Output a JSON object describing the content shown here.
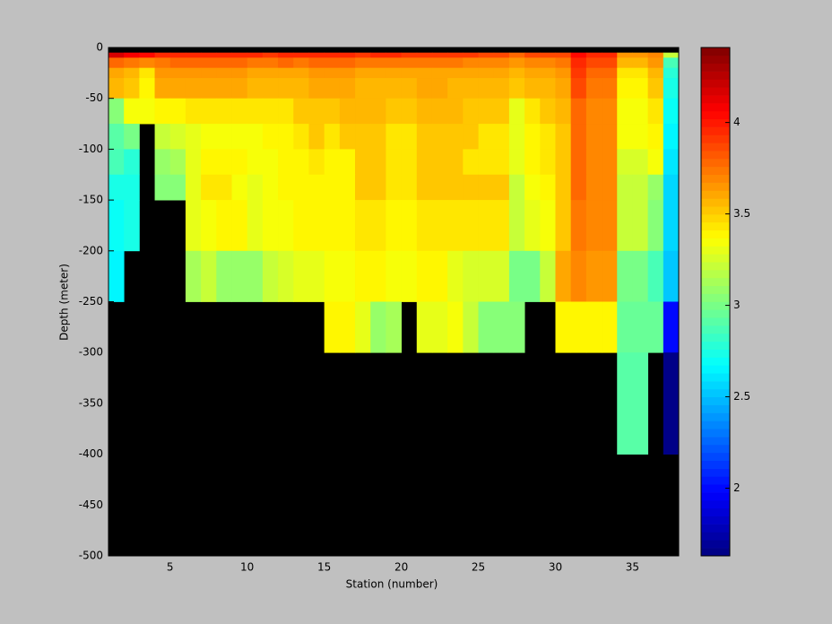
{
  "chart_data": {
    "type": "heatmap",
    "xlabel": "Station (number)",
    "ylabel": "Depth (meter)",
    "colormap": "jet",
    "x": [
      1,
      2,
      3,
      4,
      5,
      6,
      7,
      8,
      9,
      10,
      11,
      12,
      13,
      14,
      15,
      16,
      17,
      18,
      19,
      20,
      21,
      22,
      23,
      24,
      25,
      26,
      27,
      28,
      29,
      30,
      31,
      32,
      33,
      34,
      35,
      36,
      37
    ],
    "y_edges": [
      0,
      -5,
      -10,
      -20,
      -30,
      -50,
      -75,
      -100,
      -125,
      -150,
      -200,
      -250,
      -300,
      -400,
      -500
    ],
    "z": [
      [
        null,
        null,
        null,
        null,
        null,
        null,
        null,
        null,
        null,
        null,
        null,
        null,
        null,
        null,
        null,
        null,
        null,
        null,
        null,
        null,
        null,
        null,
        null,
        null,
        null,
        null,
        null,
        null,
        null,
        null,
        null,
        null,
        null,
        null,
        null,
        null,
        null
      ],
      [
        4.15,
        4.1,
        4.05,
        3.95,
        3.95,
        3.95,
        3.95,
        3.95,
        3.95,
        3.95,
        3.9,
        3.95,
        3.95,
        3.95,
        3.95,
        3.95,
        3.9,
        3.95,
        3.95,
        3.9,
        3.9,
        3.9,
        3.9,
        3.9,
        3.85,
        3.85,
        3.8,
        3.85,
        3.85,
        3.85,
        4.05,
        3.95,
        3.95,
        3.65,
        3.65,
        3.7,
        3.2
      ],
      [
        3.8,
        3.75,
        3.7,
        3.75,
        3.8,
        3.8,
        3.8,
        3.8,
        3.8,
        3.75,
        3.75,
        3.8,
        3.75,
        3.8,
        3.8,
        3.8,
        3.75,
        3.75,
        3.75,
        3.75,
        3.75,
        3.75,
        3.75,
        3.7,
        3.7,
        3.7,
        3.65,
        3.7,
        3.7,
        3.75,
        3.95,
        3.85,
        3.85,
        3.55,
        3.55,
        3.65,
        2.85
      ],
      [
        3.6,
        3.55,
        3.45,
        3.65,
        3.65,
        3.65,
        3.65,
        3.65,
        3.65,
        3.6,
        3.6,
        3.6,
        3.6,
        3.65,
        3.65,
        3.65,
        3.6,
        3.6,
        3.6,
        3.6,
        3.6,
        3.6,
        3.6,
        3.6,
        3.6,
        3.6,
        3.55,
        3.6,
        3.6,
        3.65,
        3.9,
        3.8,
        3.8,
        3.45,
        3.45,
        3.55,
        2.8
      ],
      [
        3.55,
        3.5,
        3.4,
        3.6,
        3.6,
        3.6,
        3.6,
        3.6,
        3.6,
        3.55,
        3.55,
        3.55,
        3.55,
        3.6,
        3.6,
        3.6,
        3.55,
        3.55,
        3.55,
        3.55,
        3.6,
        3.6,
        3.55,
        3.55,
        3.55,
        3.55,
        3.5,
        3.55,
        3.55,
        3.6,
        3.85,
        3.75,
        3.75,
        3.4,
        3.4,
        3.5,
        2.75
      ],
      [
        3.05,
        3.35,
        3.35,
        3.4,
        3.4,
        3.45,
        3.45,
        3.45,
        3.45,
        3.45,
        3.45,
        3.45,
        3.5,
        3.5,
        3.5,
        3.55,
        3.55,
        3.55,
        3.5,
        3.5,
        3.55,
        3.55,
        3.55,
        3.5,
        3.5,
        3.5,
        3.3,
        3.45,
        3.5,
        3.55,
        3.8,
        3.7,
        3.7,
        3.35,
        3.35,
        3.45,
        2.7
      ],
      [
        2.9,
        3.0,
        null,
        3.2,
        3.25,
        3.3,
        3.35,
        3.35,
        3.35,
        3.35,
        3.4,
        3.4,
        3.45,
        3.5,
        3.45,
        3.5,
        3.5,
        3.5,
        3.45,
        3.45,
        3.5,
        3.5,
        3.5,
        3.5,
        3.45,
        3.45,
        3.3,
        3.4,
        3.45,
        3.5,
        3.8,
        3.7,
        3.7,
        3.35,
        3.35,
        3.4,
        2.65
      ],
      [
        2.85,
        2.8,
        null,
        3.1,
        3.15,
        3.3,
        3.4,
        3.4,
        3.4,
        3.35,
        3.35,
        3.4,
        3.4,
        3.45,
        3.4,
        3.4,
        3.5,
        3.5,
        3.45,
        3.45,
        3.5,
        3.5,
        3.5,
        3.45,
        3.45,
        3.45,
        3.3,
        3.4,
        3.45,
        3.5,
        3.8,
        3.7,
        3.7,
        3.25,
        3.25,
        3.35,
        2.6
      ],
      [
        2.75,
        2.75,
        null,
        3.05,
        3.05,
        3.3,
        3.45,
        3.45,
        3.35,
        3.3,
        3.35,
        3.4,
        3.4,
        3.4,
        3.4,
        3.4,
        3.5,
        3.5,
        3.45,
        3.45,
        3.5,
        3.5,
        3.5,
        3.5,
        3.5,
        3.5,
        3.2,
        3.35,
        3.4,
        3.5,
        3.8,
        3.7,
        3.7,
        3.2,
        3.2,
        3.1,
        2.55
      ],
      [
        2.7,
        2.75,
        null,
        null,
        null,
        3.3,
        3.35,
        3.4,
        3.4,
        3.3,
        3.35,
        3.35,
        3.4,
        3.4,
        3.4,
        3.4,
        3.45,
        3.45,
        3.4,
        3.4,
        3.45,
        3.45,
        3.45,
        3.45,
        3.45,
        3.45,
        3.2,
        3.3,
        3.35,
        3.5,
        3.75,
        3.7,
        3.7,
        3.2,
        3.2,
        3.05,
        2.55
      ],
      [
        2.65,
        null,
        null,
        null,
        null,
        3.15,
        3.2,
        3.1,
        3.1,
        3.1,
        3.2,
        3.25,
        3.3,
        3.3,
        3.35,
        3.35,
        3.4,
        3.4,
        3.35,
        3.35,
        3.4,
        3.4,
        3.3,
        3.25,
        3.25,
        3.25,
        3.0,
        3.0,
        3.2,
        3.6,
        3.7,
        3.65,
        3.65,
        3.0,
        3.0,
        2.85,
        2.5
      ],
      [
        null,
        null,
        null,
        null,
        null,
        null,
        null,
        null,
        null,
        null,
        null,
        null,
        null,
        null,
        3.4,
        3.4,
        3.3,
        3.1,
        3.15,
        null,
        3.3,
        3.3,
        3.35,
        3.2,
        3.05,
        3.05,
        3.05,
        null,
        null,
        3.4,
        3.4,
        3.4,
        3.4,
        2.95,
        2.95,
        2.95,
        2.0
      ],
      [
        null,
        null,
        null,
        null,
        null,
        null,
        null,
        null,
        null,
        null,
        null,
        null,
        null,
        null,
        null,
        null,
        null,
        null,
        null,
        null,
        null,
        null,
        null,
        null,
        null,
        null,
        null,
        null,
        null,
        null,
        null,
        null,
        null,
        2.9,
        2.9,
        null,
        1.65
      ],
      [
        null,
        null,
        null,
        null,
        null,
        null,
        null,
        null,
        null,
        null,
        null,
        null,
        null,
        null,
        null,
        null,
        null,
        null,
        null,
        null,
        null,
        null,
        null,
        null,
        null,
        null,
        null,
        null,
        null,
        null,
        null,
        null,
        null,
        null,
        null,
        null,
        null
      ]
    ],
    "xlim": [
      1,
      38
    ],
    "xticks": [
      5,
      10,
      15,
      20,
      25,
      30,
      35
    ],
    "ylim": [
      -500,
      0
    ],
    "yticks": [
      -500,
      -450,
      -400,
      -350,
      -300,
      -250,
      -200,
      -150,
      -100,
      -50,
      0
    ],
    "clim": [
      1.63,
      4.41
    ],
    "cticks": [
      2,
      2.5,
      3,
      3.5,
      4
    ]
  }
}
